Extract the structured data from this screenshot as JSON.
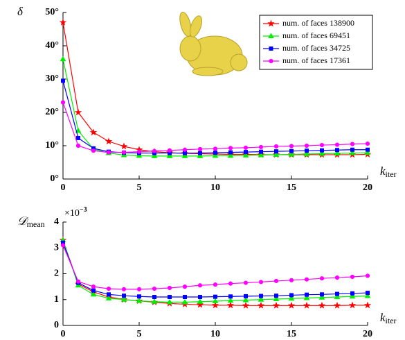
{
  "chart_data": [
    {
      "type": "line",
      "y_label": "δ",
      "x_label": {
        "main": "k",
        "sub": "iter"
      },
      "x": [
        0,
        1,
        2,
        3,
        4,
        5,
        6,
        7,
        8,
        9,
        10,
        11,
        12,
        13,
        14,
        15,
        16,
        17,
        18,
        19,
        20
      ],
      "xlim": [
        0,
        20
      ],
      "xticks": [
        0,
        5,
        10,
        15,
        20
      ],
      "ylim": [
        0,
        50
      ],
      "yticks": [
        {
          "value": 0,
          "label": "0°"
        },
        {
          "value": 10,
          "label": "10°"
        },
        {
          "value": 20,
          "label": "20°"
        },
        {
          "value": 30,
          "label": "30°"
        },
        {
          "value": 40,
          "label": "40°"
        },
        {
          "value": 50,
          "label": "50°"
        }
      ],
      "legend": "upper right",
      "series": [
        {
          "name": "num. of faces 138900",
          "color": "#ff0000",
          "marker": "star",
          "values": [
            47,
            20,
            14,
            11.3,
            9.8,
            8.8,
            8.2,
            7.9,
            7.7,
            7.6,
            7.5,
            7.4,
            7.4,
            7.3,
            7.3,
            7.3,
            7.3,
            7.3,
            7.3,
            7.3,
            7.4
          ]
        },
        {
          "name": "num. of faces 69451",
          "color": "#00ee00",
          "marker": "triangle",
          "values": [
            36,
            14.5,
            9,
            7.8,
            7.2,
            7.0,
            6.9,
            6.9,
            6.9,
            6.9,
            7.0,
            7.0,
            7.1,
            7.2,
            7.3,
            7.4,
            7.5,
            7.6,
            7.7,
            7.8,
            7.9
          ]
        },
        {
          "name": "num. of faces 34725",
          "color": "#0000ff",
          "marker": "square",
          "values": [
            29.5,
            12.3,
            9.2,
            8.2,
            7.9,
            7.8,
            7.8,
            7.8,
            7.8,
            7.8,
            7.9,
            8.0,
            8.1,
            8.2,
            8.3,
            8.4,
            8.5,
            8.6,
            8.7,
            8.8,
            8.8
          ]
        },
        {
          "name": "num. of faces 17361",
          "color": "#ff00ff",
          "marker": "circle",
          "values": [
            23,
            10,
            8.5,
            8.0,
            8.0,
            8.2,
            8.4,
            8.6,
            8.8,
            9.0,
            9.1,
            9.3,
            9.4,
            9.6,
            9.8,
            9.9,
            10.0,
            10.2,
            10.3,
            10.5,
            10.6
          ]
        }
      ]
    },
    {
      "type": "line",
      "y_label": {
        "main": "𝒟",
        "sub": "mean"
      },
      "x_label": {
        "main": "k",
        "sub": "iter"
      },
      "multiplier": {
        "base": "×10",
        "exp": "−3"
      },
      "x": [
        0,
        1,
        2,
        3,
        4,
        5,
        6,
        7,
        8,
        9,
        10,
        11,
        12,
        13,
        14,
        15,
        16,
        17,
        18,
        19,
        20
      ],
      "xlim": [
        0,
        20
      ],
      "xticks": [
        0,
        5,
        10,
        15,
        20
      ],
      "ylim": [
        0,
        4
      ],
      "yticks": [
        0,
        1,
        2,
        3,
        4
      ],
      "series": [
        {
          "color": "#ff0000",
          "marker": "star",
          "values": [
            3.3,
            1.6,
            1.3,
            1.1,
            1.0,
            0.95,
            0.9,
            0.85,
            0.82,
            0.8,
            0.78,
            0.78,
            0.77,
            0.77,
            0.77,
            0.77,
            0.77,
            0.77,
            0.77,
            0.78,
            0.78
          ]
        },
        {
          "color": "#00ee00",
          "marker": "triangle",
          "values": [
            3.3,
            1.55,
            1.2,
            1.05,
            1.0,
            0.95,
            0.92,
            0.9,
            0.9,
            0.92,
            0.94,
            0.96,
            0.98,
            1.0,
            1.02,
            1.04,
            1.06,
            1.08,
            1.1,
            1.12,
            1.14
          ]
        },
        {
          "color": "#0000ff",
          "marker": "square",
          "values": [
            3.2,
            1.65,
            1.35,
            1.2,
            1.15,
            1.12,
            1.1,
            1.1,
            1.1,
            1.1,
            1.11,
            1.12,
            1.13,
            1.14,
            1.15,
            1.17,
            1.19,
            1.2,
            1.22,
            1.24,
            1.26
          ]
        },
        {
          "color": "#ff00ff",
          "marker": "circle",
          "values": [
            3.1,
            1.7,
            1.5,
            1.42,
            1.4,
            1.4,
            1.42,
            1.45,
            1.5,
            1.55,
            1.58,
            1.62,
            1.65,
            1.68,
            1.72,
            1.75,
            1.78,
            1.82,
            1.85,
            1.88,
            1.92
          ]
        }
      ]
    }
  ]
}
